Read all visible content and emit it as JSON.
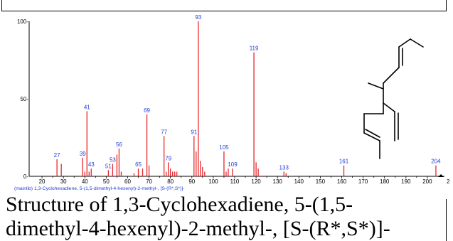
{
  "colors": {
    "peak": "#e8252a",
    "label": "#1f3fd6",
    "axis": "#000000",
    "caption": "#000000"
  },
  "chart_data": {
    "type": "bar",
    "xlim": [
      14,
      208
    ],
    "ylim": [
      0,
      100
    ],
    "yticks": [
      0,
      50,
      100
    ],
    "xticks": [
      20,
      30,
      40,
      50,
      60,
      70,
      80,
      90,
      100,
      110,
      120,
      130,
      140,
      150,
      160,
      170,
      180,
      190,
      200
    ],
    "x_tick_labels": [
      "20",
      "30",
      "40",
      "50",
      "60",
      "70",
      "80",
      "90",
      "100",
      "110",
      "120",
      "130",
      "140",
      "150",
      "160",
      "170",
      "180",
      "190",
      "200"
    ],
    "y_tick_labels": [
      "0-",
      "50-",
      "100-"
    ],
    "peaks": [
      {
        "mz": 27,
        "intensity": 11,
        "label": "27"
      },
      {
        "mz": 29,
        "intensity": 8
      },
      {
        "mz": 39,
        "intensity": 12,
        "label": "39"
      },
      {
        "mz": 40,
        "intensity": 3
      },
      {
        "mz": 41,
        "intensity": 42,
        "label": "41"
      },
      {
        "mz": 42,
        "intensity": 3
      },
      {
        "mz": 43,
        "intensity": 5,
        "label": "43"
      },
      {
        "mz": 51,
        "intensity": 4,
        "label": "51"
      },
      {
        "mz": 53,
        "intensity": 8,
        "label": "53"
      },
      {
        "mz": 55,
        "intensity": 14
      },
      {
        "mz": 56,
        "intensity": 18,
        "label": "56"
      },
      {
        "mz": 57,
        "intensity": 3
      },
      {
        "mz": 63,
        "intensity": 2
      },
      {
        "mz": 65,
        "intensity": 5,
        "label": "65"
      },
      {
        "mz": 67,
        "intensity": 5
      },
      {
        "mz": 69,
        "intensity": 40,
        "label": "69"
      },
      {
        "mz": 70,
        "intensity": 7
      },
      {
        "mz": 77,
        "intensity": 26,
        "label": "77"
      },
      {
        "mz": 78,
        "intensity": 3
      },
      {
        "mz": 79,
        "intensity": 9,
        "label": "79"
      },
      {
        "mz": 80,
        "intensity": 5
      },
      {
        "mz": 81,
        "intensity": 3
      },
      {
        "mz": 82,
        "intensity": 3
      },
      {
        "mz": 83,
        "intensity": 3
      },
      {
        "mz": 91,
        "intensity": 26,
        "label": "91"
      },
      {
        "mz": 92,
        "intensity": 16
      },
      {
        "mz": 93,
        "intensity": 100,
        "label": "93"
      },
      {
        "mz": 94,
        "intensity": 10
      },
      {
        "mz": 95,
        "intensity": 6
      },
      {
        "mz": 96,
        "intensity": 3
      },
      {
        "mz": 105,
        "intensity": 16,
        "label": "105"
      },
      {
        "mz": 106,
        "intensity": 3
      },
      {
        "mz": 107,
        "intensity": 5
      },
      {
        "mz": 109,
        "intensity": 5,
        "label": "109"
      },
      {
        "mz": 119,
        "intensity": 80,
        "label": "119"
      },
      {
        "mz": 120,
        "intensity": 9
      },
      {
        "mz": 121,
        "intensity": 5
      },
      {
        "mz": 133,
        "intensity": 3,
        "label": "133"
      },
      {
        "mz": 134,
        "intensity": 2
      },
      {
        "mz": 161,
        "intensity": 7,
        "label": "161"
      },
      {
        "mz": 204,
        "intensity": 7,
        "label": "204"
      }
    ],
    "footer": "(mainlib) 1,3-Cyclohexadiene, 5-(1,5-dimethyl-4-hexenyl)-2-methyl-, [S-(R*,S*)]-",
    "edge_tick_label": "2"
  },
  "caption": {
    "line1": "Structure of 1,3-Cyclohexadiene, 5-(1,5-",
    "line2": "dimethyl-4-hexenyl)-2-methyl-, [S-(R*,S*)]-"
  }
}
